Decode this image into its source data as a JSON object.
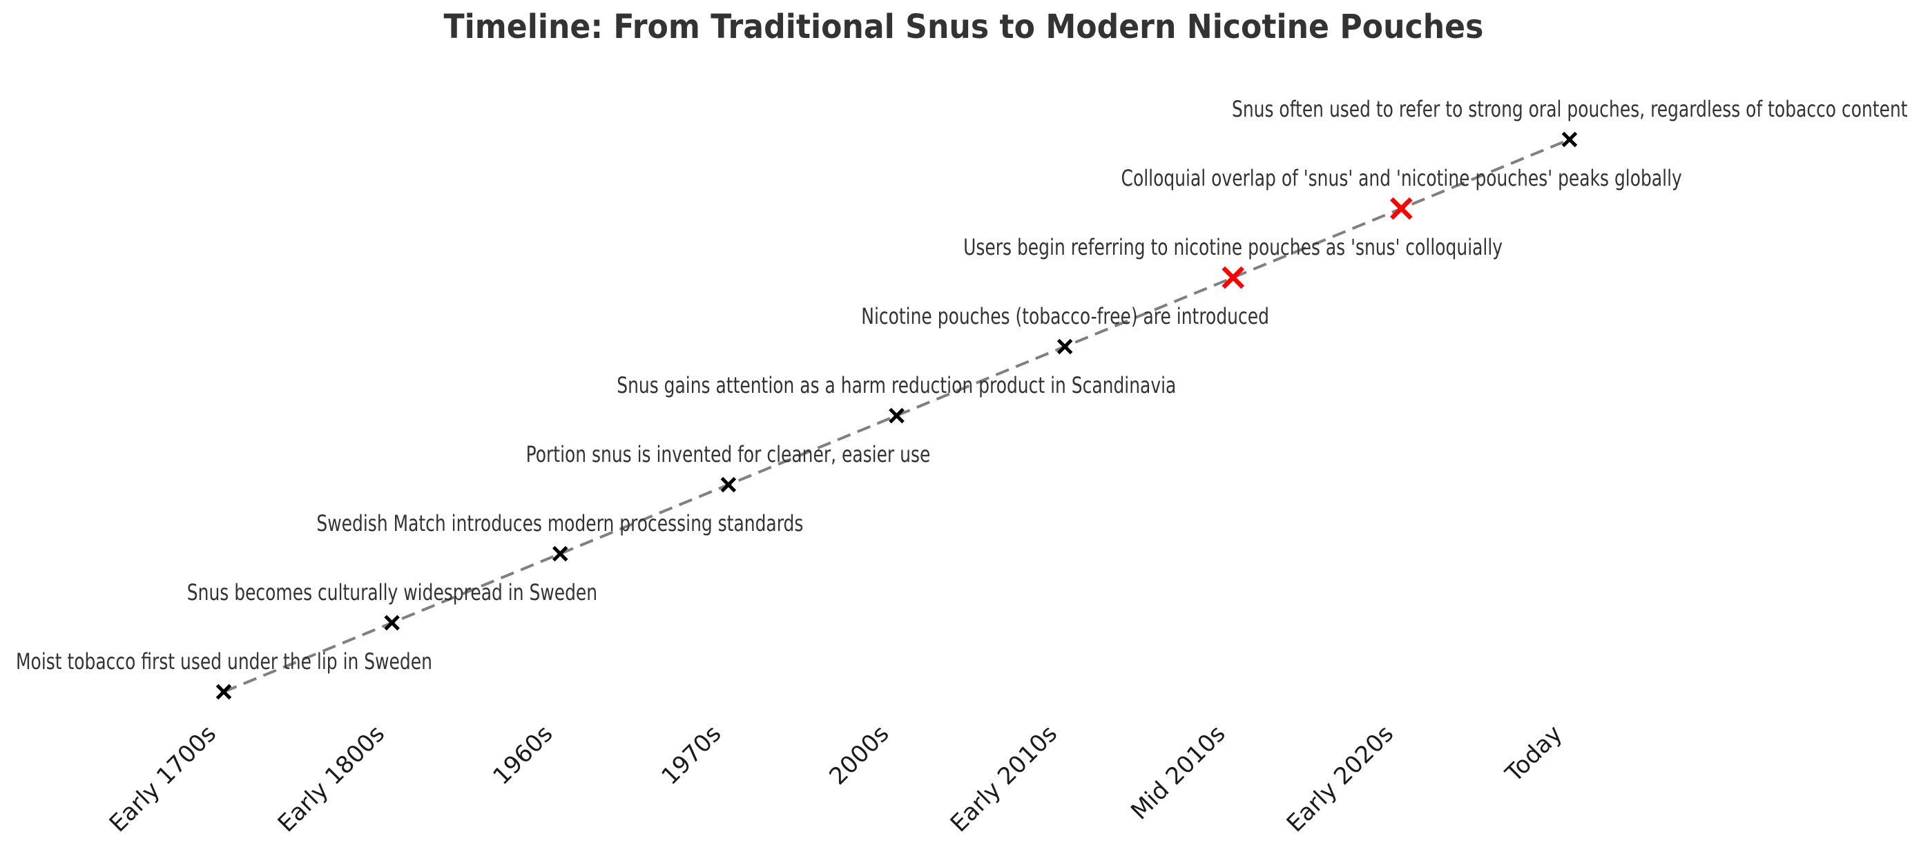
{
  "chart_data": {
    "type": "scatter",
    "title": "Timeline: From Traditional Snus to Modern Nicotine Pouches",
    "xlabel": "",
    "ylabel": "",
    "grid": false,
    "legend": "none",
    "line_style": "dashed",
    "line_color": "#808080",
    "marker": "x",
    "marker_color": "#000000",
    "highlight_color": "#ff0000",
    "x_tick_labels": [
      "Early 1700s",
      "Early 1800s",
      "1960s",
      "1970s",
      "2000s",
      "Early 2010s",
      "Mid 2010s",
      "Early 2020s",
      "Today"
    ],
    "points": [
      {
        "x": "Early 1700s",
        "y": 1,
        "label": "Moist tobacco first used under the lip in Sweden",
        "highlight": false
      },
      {
        "x": "Early 1800s",
        "y": 2,
        "label": "Snus becomes culturally widespread in Sweden",
        "highlight": false
      },
      {
        "x": "1960s",
        "y": 3,
        "label": "Swedish Match introduces modern processing standards",
        "highlight": false
      },
      {
        "x": "1970s",
        "y": 4,
        "label": "Portion snus is invented for cleaner, easier use",
        "highlight": false
      },
      {
        "x": "2000s",
        "y": 5,
        "label": "Snus gains attention as a harm reduction product in Scandinavia",
        "highlight": false
      },
      {
        "x": "Early 2010s",
        "y": 6,
        "label": "Nicotine pouches (tobacco-free) are introduced",
        "highlight": false
      },
      {
        "x": "Mid 2010s",
        "y": 7,
        "label": "Users begin referring to nicotine pouches as 'snus' colloquially",
        "highlight": true
      },
      {
        "x": "Early 2020s",
        "y": 8,
        "label": "Colloquial overlap of 'snus' and 'nicotine pouches' peaks globally",
        "highlight": true
      },
      {
        "x": "Today",
        "y": 9,
        "label": "Snus often used to refer to strong oral pouches, regardless of tobacco content",
        "highlight": false
      }
    ]
  }
}
